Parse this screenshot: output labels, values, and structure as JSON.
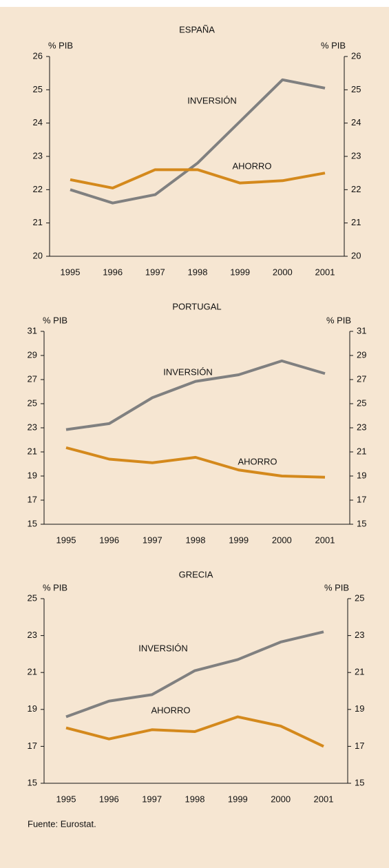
{
  "chart_data": [
    {
      "type": "line",
      "title": "ESPAÑA",
      "y_label": "% PIB",
      "y2_label": "% PIB",
      "categories": [
        "1995",
        "1996",
        "1997",
        "1998",
        "1999",
        "2000",
        "2001"
      ],
      "ylim": [
        20,
        26
      ],
      "yticks": [
        20,
        21,
        22,
        23,
        24,
        25,
        26
      ],
      "y2lim": [
        20,
        26
      ],
      "y2ticks": [
        20,
        21,
        22,
        23,
        24,
        25,
        26
      ],
      "series": [
        {
          "name": "INVERSIÓN",
          "color": "#808080",
          "values": [
            22.0,
            21.6,
            21.85,
            22.8,
            24.05,
            25.3,
            25.05
          ]
        },
        {
          "name": "AHORRO",
          "color": "#d4891c",
          "values": [
            22.3,
            22.05,
            22.6,
            22.6,
            22.2,
            22.27,
            22.5
          ]
        }
      ]
    },
    {
      "type": "line",
      "title": "PORTUGAL",
      "y_label": "% PIB",
      "y2_label": "% PIB",
      "categories": [
        "1995",
        "1996",
        "1997",
        "1998",
        "1999",
        "2000",
        "2001"
      ],
      "ylim": [
        15,
        31
      ],
      "yticks": [
        15,
        17,
        19,
        21,
        23,
        25,
        27,
        29,
        31
      ],
      "y2lim": [
        15,
        31
      ],
      "y2ticks": [
        15,
        17,
        19,
        21,
        23,
        25,
        27,
        29,
        31
      ],
      "series": [
        {
          "name": "INVERSIÓN",
          "color": "#808080",
          "values": [
            22.85,
            23.35,
            25.5,
            26.85,
            27.4,
            28.55,
            27.5
          ]
        },
        {
          "name": "AHORRO",
          "color": "#d4891c",
          "values": [
            21.35,
            20.4,
            20.1,
            20.55,
            19.5,
            19.0,
            18.9
          ]
        }
      ]
    },
    {
      "type": "line",
      "title": "GRECIA",
      "y_label": "% PIB",
      "y2_label": "% PIB",
      "categories": [
        "1995",
        "1996",
        "1997",
        "1998",
        "1999",
        "2000",
        "2001"
      ],
      "ylim": [
        15,
        25
      ],
      "yticks": [
        15,
        17,
        19,
        21,
        23,
        25
      ],
      "y2lim": [
        15,
        25
      ],
      "y2ticks": [
        15,
        17,
        19,
        21,
        23,
        25
      ],
      "series": [
        {
          "name": "INVERSIÓN",
          "color": "#808080",
          "values": [
            18.6,
            19.45,
            19.8,
            21.1,
            21.7,
            22.65,
            23.2
          ]
        },
        {
          "name": "AHORRO",
          "color": "#d4891c",
          "values": [
            18.0,
            17.4,
            17.9,
            17.8,
            18.6,
            18.1,
            17.0
          ]
        }
      ]
    }
  ],
  "source": "Fuente: Eurostat."
}
